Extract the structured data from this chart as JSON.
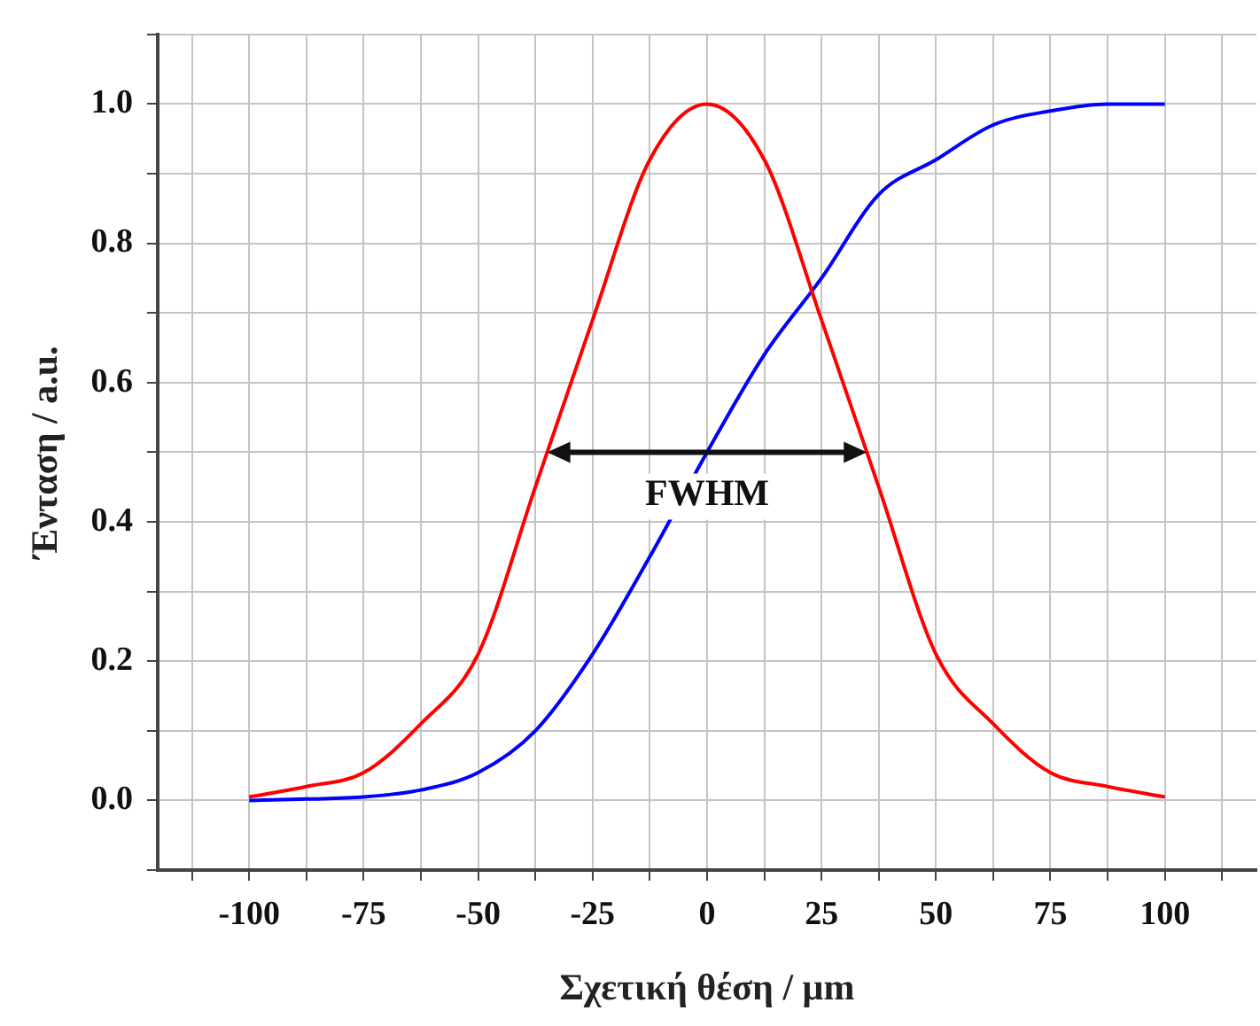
{
  "chart_data": {
    "type": "line",
    "xlabel": "Σχετική θέση / μm",
    "ylabel": "Ένταση / a.u.",
    "xlim": [
      -120,
      120
    ],
    "ylim": [
      -0.1,
      1.1
    ],
    "xticks": [
      {
        "value": -112.5,
        "label": null
      },
      -100,
      {
        "value": -87.5,
        "label": null
      },
      -75,
      {
        "value": -62.5,
        "label": null
      },
      -50,
      {
        "value": -37.5,
        "label": null
      },
      -25,
      {
        "value": -12.5,
        "label": null
      },
      0,
      {
        "value": 12.5,
        "label": null
      },
      25,
      {
        "value": 37.5,
        "label": null
      },
      50,
      {
        "value": 62.5,
        "label": null
      },
      75,
      {
        "value": 87.5,
        "label": null
      },
      100,
      {
        "value": 112.5,
        "label": null
      }
    ],
    "yticks": [
      {
        "value": -0.1,
        "label": null
      },
      {
        "value": 0,
        "label": "0.0"
      },
      {
        "value": 0.1,
        "label": null
      },
      0.2,
      {
        "value": 0.3,
        "label": null
      },
      0.4,
      {
        "value": 0.5,
        "label": null
      },
      0.6,
      {
        "value": 0.7,
        "label": null
      },
      0.8,
      {
        "value": 0.9,
        "label": null
      },
      {
        "value": 1,
        "label": "1.0"
      },
      {
        "value": 1.1,
        "label": null
      }
    ],
    "x": [
      -100,
      -87.5,
      -75,
      -62.5,
      -50,
      -37.5,
      -25,
      -12.5,
      0,
      12.5,
      25,
      37.5,
      50,
      62.5,
      75,
      87.5,
      100
    ],
    "series": [
      {
        "color": "#ff0000",
        "values": [
          0.005,
          0.02,
          0.04,
          0.11,
          0.21,
          0.45,
          0.69,
          0.92,
          1.0,
          0.92,
          0.69,
          0.45,
          0.21,
          0.11,
          0.04,
          0.02,
          0.005
        ]
      },
      {
        "color": "#0000ff",
        "values": [
          0.0,
          0.002,
          0.005,
          0.015,
          0.04,
          0.1,
          0.21,
          0.35,
          0.5,
          0.64,
          0.75,
          0.87,
          0.92,
          0.97,
          0.99,
          1.0,
          1.0
        ]
      }
    ],
    "annotations": [
      {
        "text": "FWHM",
        "x": 0,
        "y": 0.5
      }
    ],
    "grid": true,
    "legend": false,
    "marker": "none",
    "line_style": "solid"
  }
}
